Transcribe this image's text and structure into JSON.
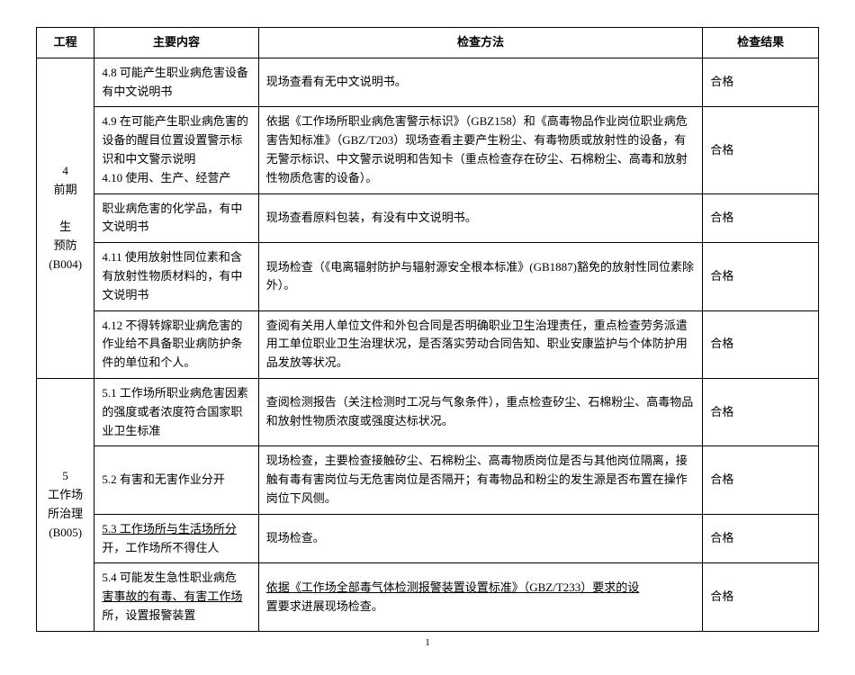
{
  "headers": {
    "project": "工程",
    "content": "主要内容",
    "method": "检查方法",
    "result": "检查结果"
  },
  "sections": [
    {
      "label_line1": "4",
      "label_line2": "前期",
      "label_line3": "生",
      "label_line4": "预防",
      "label_line5": "(B004)",
      "rows": [
        {
          "content": "4.8 可能产生职业病危害设备有中文说明书",
          "method": "现场查看有无中文说明书。",
          "result": "合格"
        },
        {
          "content": "4.9 在可能产生职业病危害的设备的醒目位置设置警示标识和中文警示说明\n4.10 使用、生产、经营产",
          "method": "依据《工作场所职业病危害警示标识》（GBZ158）和《高毒物品作业岗位职业病危害告知标准》（GBZ/T203）现场查看主要产生粉尘、有毒物质或放射性的设备，有无警示标识、中文警示说明和告知卡（重点检查存在矽尘、石棉粉尘、高毒和放射性物质危害的设备）。",
          "result": "合格"
        },
        {
          "content": "职业病危害的化学品，有中文说明书",
          "method": "现场查看原料包装，有没有中文说明书。",
          "result": "合格"
        },
        {
          "content": "4.11 使用放射性同位素和含有放射性物质材料的，有中文说明书",
          "method": "现场检查（《电离辐射防护与辐射源安全根本标准》(GB1887)豁免的放射性同位素除外）。",
          "result": "合格"
        },
        {
          "content": "4.12 不得转嫁职业病危害的作业给不具备职业病防护条件的单位和个人。",
          "method": "查阅有关用人单位文件和外包合同是否明确职业卫生治理责任，重点检查劳务派遣用工单位职业卫生治理状况，是否落实劳动合同告知、职业安康监护与个体防护用品发放等状况。",
          "result": "合格"
        }
      ]
    },
    {
      "label_line1": "5",
      "label_line2": "工作场",
      "label_line3": "所治理",
      "label_line4": "(B005)",
      "rows": [
        {
          "content": "5.1 工作场所职业病危害因素的强度或者浓度符合国家职业卫生标准",
          "method": "查阅检测报告（关注检测时工况与气象条件），重点检查矽尘、石棉粉尘、高毒物品和放射性物质浓度或强度达标状况。",
          "result": "合格"
        },
        {
          "content": "5.2 有害和无害作业分开",
          "method": "现场检查，主要检查接触矽尘、石棉粉尘、高毒物质岗位是否与其他岗位隔离，接触有毒有害岗位与无危害岗位是否隔开；有毒物品和粉尘的发生源是否布置在操作岗位下风侧。",
          "result": "合格"
        },
        {
          "content_underline": "5.3 工作场所与生活场所分",
          "content_plain": "开，工作场所不得住人",
          "method": "现场检查。",
          "result": "合格"
        },
        {
          "content_plain1": "5.4 可能发生急性职业病危",
          "content_underline": "害事故的有毒、有害工作场",
          "content_plain2": "所，设置报警装置",
          "method_underline": "依据《工作场全部毒气体检测报警装置设置标准》（GBZ/T233）要求的设",
          "method_plain": "置要求进展现场检查。",
          "result": "合格"
        }
      ]
    }
  ],
  "page_number": "1"
}
